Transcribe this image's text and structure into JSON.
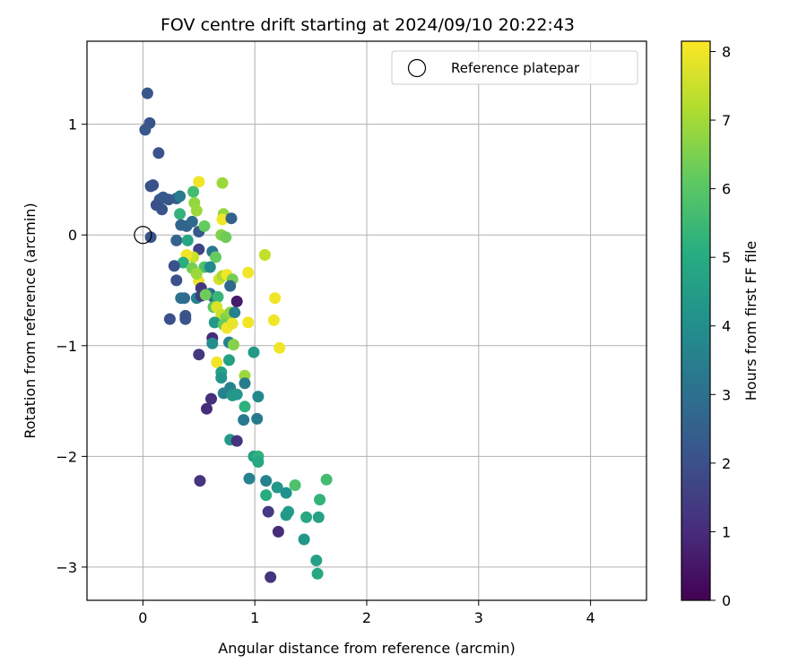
{
  "chart_data": {
    "type": "scatter",
    "title": "FOV centre drift starting at 2024/09/10 20:22:43",
    "xlabel": "Angular distance from reference (arcmin)",
    "ylabel": "Rotation from reference (arcmin)",
    "xlim": [
      -0.5,
      4.5
    ],
    "ylim": [
      -3.3,
      1.75
    ],
    "xticks": [
      0,
      1,
      2,
      3,
      4
    ],
    "yticks": [
      -3,
      -2,
      -1,
      0,
      1
    ],
    "grid": true,
    "legend": {
      "placement": "upper-right",
      "entries": [
        "Reference platepar"
      ]
    },
    "reference_point": {
      "x": 0,
      "y": 0,
      "label": "Reference platepar"
    },
    "colorbar": {
      "label": "Hours from first FF file",
      "range": [
        0,
        8.15
      ],
      "ticks": [
        0,
        1,
        2,
        3,
        4,
        5,
        6,
        7,
        8
      ],
      "colormap": "viridis"
    },
    "points": [
      [
        0.04,
        1.28,
        2.2
      ],
      [
        0.06,
        1.01,
        2.1
      ],
      [
        0.02,
        0.95,
        2.2
      ],
      [
        0.14,
        0.74,
        2.1
      ],
      [
        0.07,
        0.44,
        2.0
      ],
      [
        0.09,
        0.45,
        2.0
      ],
      [
        0.15,
        0.32,
        2.2
      ],
      [
        0.18,
        0.34,
        2.3
      ],
      [
        0.23,
        0.32,
        2.2
      ],
      [
        0.17,
        0.23,
        2.1
      ],
      [
        0.12,
        0.27,
        2.0
      ],
      [
        0.07,
        -0.02,
        2.1
      ],
      [
        0.3,
        0.33,
        2.4
      ],
      [
        0.33,
        0.35,
        3.4
      ],
      [
        0.45,
        0.39,
        5.6
      ],
      [
        0.46,
        0.29,
        6.8
      ],
      [
        0.48,
        0.22,
        6.9
      ],
      [
        0.5,
        0.48,
        8.0
      ],
      [
        0.71,
        0.47,
        6.9
      ],
      [
        0.72,
        0.19,
        6.8
      ],
      [
        0.71,
        0.14,
        8.0
      ],
      [
        0.79,
        0.15,
        2.5
      ],
      [
        0.33,
        0.19,
        5.3
      ],
      [
        0.34,
        0.09,
        2.6
      ],
      [
        0.39,
        0.08,
        2.6
      ],
      [
        0.44,
        0.12,
        2.8
      ],
      [
        0.5,
        0.03,
        2.3
      ],
      [
        0.55,
        0.08,
        6.2
      ],
      [
        0.7,
        0.0,
        6.6
      ],
      [
        0.74,
        -0.02,
        6.3
      ],
      [
        0.3,
        -0.05,
        2.6
      ],
      [
        0.4,
        -0.05,
        4.8
      ],
      [
        0.5,
        -0.13,
        1.6
      ],
      [
        0.62,
        -0.15,
        3.2
      ],
      [
        0.65,
        -0.2,
        6.2
      ],
      [
        0.45,
        -0.2,
        7.5
      ],
      [
        0.39,
        -0.18,
        8.0
      ],
      [
        0.36,
        -0.25,
        5.1
      ],
      [
        0.44,
        -0.3,
        6.4
      ],
      [
        0.55,
        -0.29,
        5.8
      ],
      [
        0.6,
        -0.29,
        3.8
      ],
      [
        0.28,
        -0.28,
        2.0
      ],
      [
        0.3,
        -0.41,
        2.0
      ],
      [
        0.5,
        -0.42,
        7.9
      ],
      [
        0.48,
        -0.35,
        6.9
      ],
      [
        0.52,
        -0.48,
        1.3
      ],
      [
        0.6,
        -0.53,
        3.1
      ],
      [
        0.63,
        -0.56,
        2.8
      ],
      [
        0.67,
        -0.56,
        5.4
      ],
      [
        0.68,
        -0.4,
        7.6
      ],
      [
        0.71,
        -0.37,
        7.1
      ],
      [
        0.75,
        -0.36,
        8.0
      ],
      [
        0.8,
        -0.4,
        6.4
      ],
      [
        0.78,
        -0.46,
        2.7
      ],
      [
        0.34,
        -0.57,
        3.0
      ],
      [
        0.37,
        -0.57,
        2.9
      ],
      [
        0.48,
        -0.57,
        3.5
      ],
      [
        0.52,
        -0.55,
        1.4
      ],
      [
        0.56,
        -0.54,
        6.3
      ],
      [
        0.63,
        -0.65,
        6.0
      ],
      [
        0.66,
        -0.65,
        7.7
      ],
      [
        0.7,
        -0.72,
        7.5
      ],
      [
        0.74,
        -0.75,
        6.6
      ],
      [
        0.78,
        -0.7,
        6.8
      ],
      [
        0.82,
        -0.7,
        3.5
      ],
      [
        0.84,
        -0.6,
        0.6
      ],
      [
        0.38,
        -0.73,
        2.2
      ],
      [
        0.38,
        -0.76,
        2.1
      ],
      [
        0.24,
        -0.76,
        2.0
      ],
      [
        0.64,
        -0.79,
        4.4
      ],
      [
        0.72,
        -0.81,
        6.2
      ],
      [
        0.75,
        -0.84,
        8.0
      ],
      [
        0.8,
        -0.8,
        7.9
      ],
      [
        0.94,
        -0.79,
        8.0
      ],
      [
        0.94,
        -0.34,
        8.0
      ],
      [
        1.09,
        -0.18,
        8.0
      ],
      [
        1.09,
        -0.18,
        7.4
      ],
      [
        1.18,
        -0.57,
        8.0
      ],
      [
        1.17,
        -0.77,
        8.0
      ],
      [
        1.22,
        -1.02,
        8.0
      ],
      [
        0.62,
        -0.93,
        1.0
      ],
      [
        0.62,
        -0.98,
        4.0
      ],
      [
        0.77,
        -0.97,
        3.5
      ],
      [
        0.81,
        -0.99,
        6.6
      ],
      [
        0.5,
        -1.08,
        1.3
      ],
      [
        0.66,
        -1.15,
        8.0
      ],
      [
        0.7,
        -1.24,
        4.6
      ],
      [
        0.7,
        -1.29,
        4.2
      ],
      [
        0.77,
        -1.13,
        4.6
      ],
      [
        0.99,
        -1.06,
        4.4
      ],
      [
        0.91,
        -1.27,
        6.9
      ],
      [
        0.91,
        -1.34,
        3.4
      ],
      [
        0.72,
        -1.43,
        3.6
      ],
      [
        0.78,
        -1.38,
        3.6
      ],
      [
        0.8,
        -1.45,
        4.4
      ],
      [
        0.84,
        -1.44,
        4.3
      ],
      [
        0.61,
        -1.48,
        1.1
      ],
      [
        0.57,
        -1.57,
        1.0
      ],
      [
        0.91,
        -1.55,
        5.2
      ],
      [
        1.03,
        -1.46,
        3.8
      ],
      [
        0.9,
        -1.67,
        3.3
      ],
      [
        1.02,
        -1.66,
        3.3
      ],
      [
        0.78,
        -1.85,
        4.4
      ],
      [
        0.84,
        -1.86,
        1.2
      ],
      [
        0.99,
        -2.0,
        4.6
      ],
      [
        1.03,
        -2.0,
        5.2
      ],
      [
        1.03,
        -2.05,
        4.8
      ],
      [
        0.95,
        -2.2,
        3.6
      ],
      [
        0.51,
        -2.22,
        1.2
      ],
      [
        1.1,
        -2.22,
        3.6
      ],
      [
        1.2,
        -2.28,
        4.3
      ],
      [
        1.1,
        -2.35,
        5.0
      ],
      [
        1.28,
        -2.33,
        4.1
      ],
      [
        1.36,
        -2.26,
        5.8
      ],
      [
        1.3,
        -2.5,
        4.5
      ],
      [
        1.28,
        -2.53,
        4.4
      ],
      [
        1.12,
        -2.5,
        1.4
      ],
      [
        1.58,
        -2.39,
        5.3
      ],
      [
        1.64,
        -2.21,
        5.6
      ],
      [
        1.46,
        -2.55,
        4.9
      ],
      [
        1.57,
        -2.55,
        4.6
      ],
      [
        1.21,
        -2.68,
        1.0
      ],
      [
        1.44,
        -2.75,
        4.3
      ],
      [
        1.55,
        -2.94,
        4.6
      ],
      [
        1.56,
        -3.06,
        4.9
      ],
      [
        1.14,
        -3.09,
        1.2
      ]
    ]
  }
}
